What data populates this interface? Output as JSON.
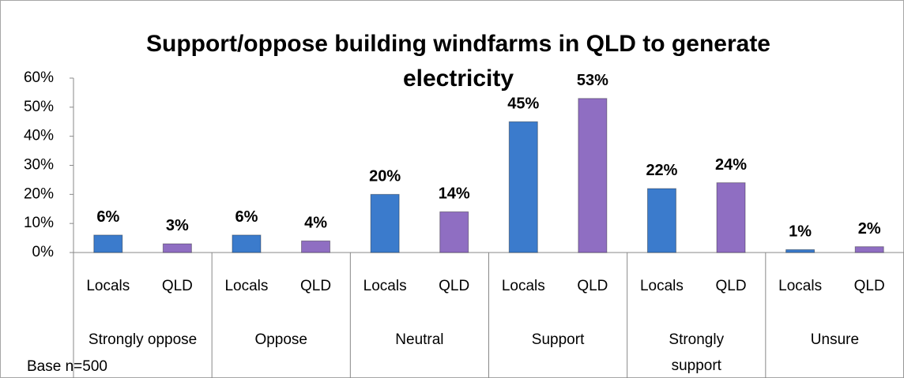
{
  "chart_data": {
    "type": "bar",
    "title": "Support/oppose building windfarms in QLD to generate electricity",
    "annotation": "Base n=500",
    "categories": [
      "Strongly oppose",
      "Oppose",
      "Neutral",
      "Support",
      "Strongly support",
      "Unsure"
    ],
    "series": [
      {
        "name": "Locals",
        "color": "#3b7bcc",
        "values": [
          6,
          6,
          20,
          45,
          22,
          1
        ],
        "value_labels": [
          "6%",
          "6%",
          "20%",
          "45%",
          "22%",
          "1%"
        ]
      },
      {
        "name": "QLD",
        "color": "#8f6ec2",
        "values": [
          3,
          4,
          14,
          53,
          24,
          2
        ],
        "value_labels": [
          "3%",
          "4%",
          "14%",
          "53%",
          "24%",
          "2%"
        ]
      }
    ],
    "ylim": [
      0,
      60
    ],
    "yticks": [
      {
        "value": 0,
        "label": "0%"
      },
      {
        "value": 10,
        "label": "10%"
      },
      {
        "value": 20,
        "label": "20%"
      },
      {
        "value": 30,
        "label": "30%"
      },
      {
        "value": 40,
        "label": "40%"
      },
      {
        "value": 50,
        "label": "50%"
      },
      {
        "value": 60,
        "label": "60%"
      }
    ],
    "grid": false
  }
}
